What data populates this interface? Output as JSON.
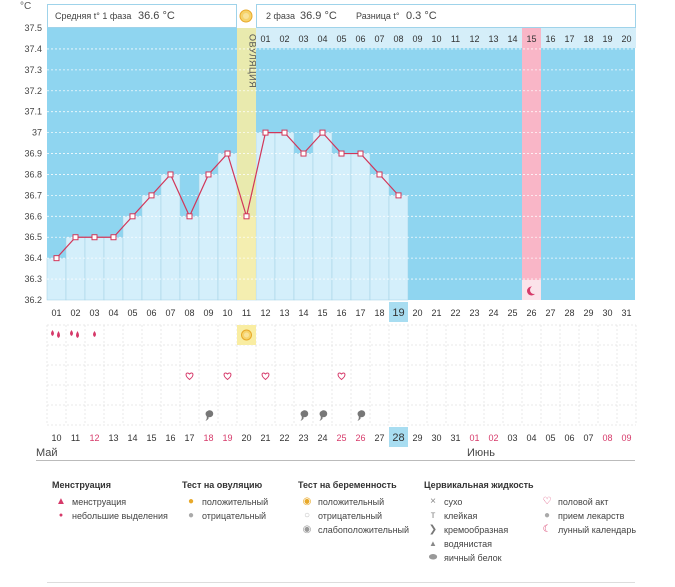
{
  "header": {
    "unit": "°C",
    "phase1_label": "Средняя t° 1 фаза",
    "phase1_value": "36.6 °C",
    "phase2_label": "2 фаза",
    "phase2_value": "36.9 °C",
    "diff_label": "Разница t°",
    "diff_value": "0.3 °C",
    "ovulation_label": "ОВУЛЯЦИЯ"
  },
  "chart_data": {
    "type": "area",
    "title": "",
    "xlabel": "",
    "ylabel": "°C",
    "ylim": [
      36.2,
      37.5
    ],
    "y_ticks": [
      "36.2",
      "36.3",
      "36.4",
      "36.5",
      "36.6",
      "36.7",
      "36.8",
      "36.9",
      "37",
      "37.1",
      "37.2",
      "37.3",
      "37.4",
      "37.5"
    ],
    "cycle_days": [
      "01",
      "02",
      "03",
      "04",
      "05",
      "06",
      "07",
      "08",
      "09",
      "10",
      "11",
      "12",
      "13",
      "14",
      "15",
      "16",
      "17",
      "18",
      "19",
      "20",
      "21",
      "22",
      "23",
      "24",
      "25",
      "26",
      "27",
      "28",
      "29",
      "30",
      "31"
    ],
    "series": [
      {
        "values": [
          36.4,
          36.5,
          36.5,
          36.5,
          36.6,
          36.7,
          36.8,
          36.6,
          36.8,
          36.9,
          36.6,
          37.0,
          37.0,
          36.9,
          37.0,
          36.9,
          36.9,
          36.8,
          36.7
        ]
      }
    ],
    "current_day": "19",
    "ovulation_day": "11",
    "phase2_days": [
      "01",
      "02",
      "03",
      "04",
      "05",
      "06",
      "07",
      "08",
      "09",
      "10",
      "11",
      "12",
      "13",
      "14",
      "15",
      "16",
      "17",
      "18",
      "19",
      "20"
    ],
    "phase2_highlight": "15",
    "calendar_dates": [
      "10",
      "11",
      "12",
      "13",
      "14",
      "15",
      "16",
      "17",
      "18",
      "19",
      "20",
      "21",
      "22",
      "23",
      "24",
      "25",
      "26",
      "27",
      "28",
      "29",
      "30",
      "31",
      "01",
      "02",
      "03",
      "04",
      "05",
      "06",
      "07",
      "08",
      "09"
    ],
    "calendar_red_indexes": [
      2,
      8,
      9,
      15,
      16,
      22,
      23,
      29,
      30
    ],
    "today_date": "28",
    "month_labels": [
      "Май",
      "Июнь"
    ],
    "grid": true,
    "colors": {
      "plot_bg": "#8fd5f0",
      "fill": "#d4effb",
      "line": "#d2375a",
      "ovulation": "#f9eda2",
      "phase2_highlight": "#f9b6c7",
      "today": "#a8ddf1"
    }
  },
  "events": {
    "menstruation_days": [
      1,
      2,
      3
    ],
    "ovulation_positive_day": 11,
    "intercourse_days": [
      8,
      10,
      12,
      16
    ],
    "cervical_creamy_days": [
      9,
      14,
      15,
      17
    ],
    "moon_day": 26
  },
  "legend": {
    "menstruation": {
      "title": "Менструация",
      "items": [
        "менструация",
        "небольшие выделения"
      ]
    },
    "ovulation_test": {
      "title": "Тест на овуляцию",
      "items": [
        "положительный",
        "отрицательный"
      ]
    },
    "pregnancy_test": {
      "title": "Тест на беременность",
      "items": [
        "положительный",
        "отрицательный",
        "слабоположительный"
      ]
    },
    "cervical": {
      "title": "Цервикальная жидкость",
      "items": [
        "сухо",
        "клейкая",
        "кремообразная",
        "водянистая",
        "яичный белок"
      ]
    },
    "other": {
      "items": [
        "половой акт",
        "прием лекарств",
        "лунный календарь"
      ]
    }
  }
}
